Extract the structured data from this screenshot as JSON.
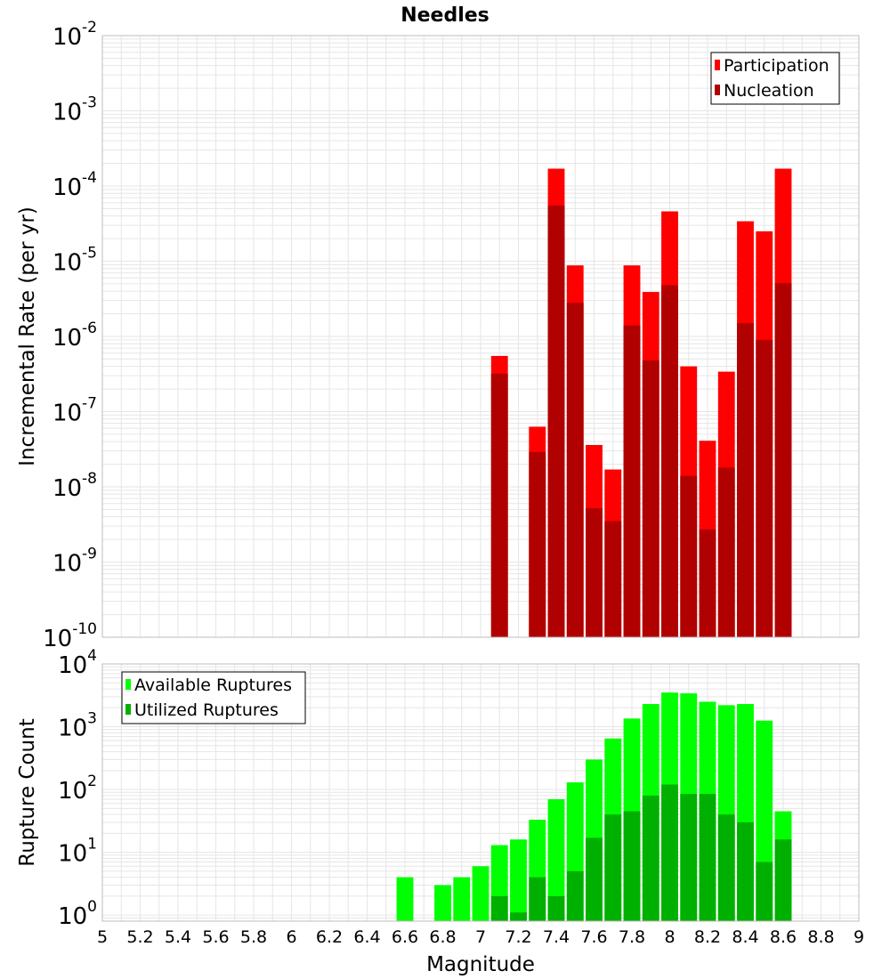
{
  "colors": {
    "participation": "#ff0000",
    "nucleation": "#b00000",
    "available": "#00ff00",
    "utilized": "#00b000",
    "grid": "#e6e6e6",
    "frame": "#bdbdbd"
  },
  "chart_data": [
    {
      "type": "bar",
      "title": "Needles",
      "xlabel": "Magnitude",
      "ylabel": "Incremental Rate (per yr)",
      "xlim": [
        5,
        9
      ],
      "ylim": [
        1e-10,
        0.01
      ],
      "yscale": "log",
      "grid": true,
      "legend_position": "top-right",
      "bar_width": 0.1,
      "y_tick_base": "10",
      "y_tick_exponents": [
        "-10",
        "-9",
        "-8",
        "-7",
        "-6",
        "-5",
        "-4",
        "-3",
        "-2"
      ],
      "x": [
        7.1,
        7.2,
        7.3,
        7.4,
        7.5,
        7.6,
        7.7,
        7.8,
        7.9,
        8.0,
        8.1,
        8.2,
        8.3,
        8.4,
        8.5,
        8.6
      ],
      "series": [
        {
          "name": "Participation",
          "values": [
            5.5e-07,
            null,
            6.3e-08,
            0.00017,
            8.8e-06,
            3.6e-08,
            1.7e-08,
            8.8e-06,
            3.9e-06,
            4.6e-05,
            4e-07,
            4.1e-08,
            3.4e-07,
            3.4e-05,
            2.5e-05,
            0.00017
          ]
        },
        {
          "name": "Nucleation",
          "values": [
            3.2e-07,
            null,
            2.9e-08,
            5.5e-05,
            2.8e-06,
            5.2e-09,
            3.5e-09,
            1.4e-06,
            4.8e-07,
            4.8e-06,
            1.4e-08,
            2.7e-09,
            1.8e-08,
            1.5e-06,
            9e-07,
            5.1e-06
          ]
        }
      ]
    },
    {
      "type": "bar",
      "title": "",
      "xlabel": "Magnitude",
      "ylabel": "Rupture Count",
      "xlim": [
        5,
        9
      ],
      "ylim": [
        0.8,
        10000.0
      ],
      "yscale": "log",
      "grid": true,
      "legend_position": "top-left",
      "bar_width": 0.1,
      "x_tick_labels": [
        "5",
        "5.2",
        "5.4",
        "5.6",
        "5.8",
        "6",
        "6.2",
        "6.4",
        "6.6",
        "6.8",
        "7",
        "7.2",
        "7.4",
        "7.6",
        "7.8",
        "8",
        "8.2",
        "8.4",
        "8.6",
        "8.8",
        "9"
      ],
      "y_tick_base": "10",
      "y_tick_exponents": [
        "0",
        "1",
        "2",
        "3",
        "4"
      ],
      "x": [
        6.6,
        6.7,
        6.8,
        6.9,
        7.0,
        7.1,
        7.2,
        7.3,
        7.4,
        7.5,
        7.6,
        7.7,
        7.8,
        7.9,
        8.0,
        8.1,
        8.2,
        8.3,
        8.4,
        8.5,
        8.6
      ],
      "series": [
        {
          "name": "Available Ruptures",
          "values": [
            4,
            null,
            3,
            4,
            6,
            13,
            16,
            33,
            70,
            130,
            300,
            650,
            1350,
            2300,
            3500,
            3400,
            2500,
            2200,
            2300,
            1250,
            45
          ]
        },
        {
          "name": "Utilized Ruptures",
          "values": [
            null,
            null,
            null,
            null,
            null,
            2,
            1.1,
            4,
            2,
            5,
            17,
            40,
            45,
            80,
            120,
            85,
            85,
            40,
            30,
            7,
            16
          ]
        }
      ]
    }
  ]
}
